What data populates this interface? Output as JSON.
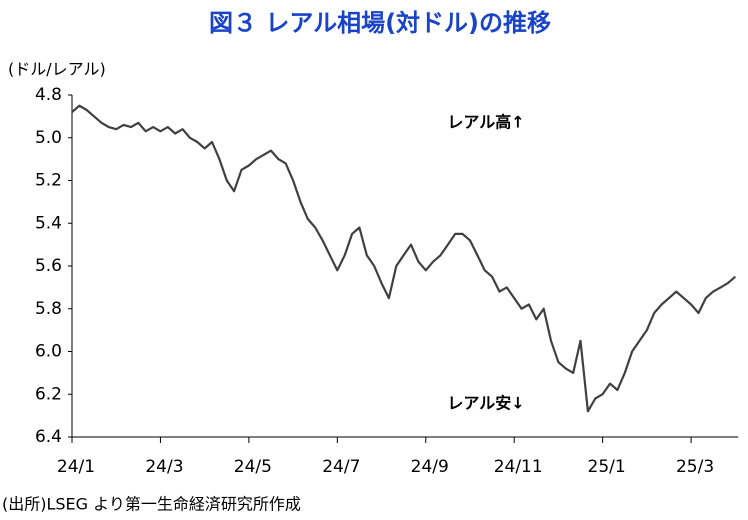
{
  "chart_data": {
    "type": "line",
    "title": "図３ レアル相場(対ドル)の推移",
    "y_label": "(ドル/レアル)",
    "annotations": [
      "レアル高↑",
      "レアル安↓"
    ],
    "source": "(出所)LSEG より第一生命経済研究所作成",
    "ylim": [
      4.8,
      6.4
    ],
    "y_inverted": true,
    "yticks": [
      4.8,
      {
        "value": 5,
        "label": "5.0"
      },
      5.2,
      5.4,
      5.6,
      5.8,
      {
        "value": 6,
        "label": "6.0"
      },
      6.2,
      6.4
    ],
    "categories": [
      "24/1",
      null,
      null,
      null,
      null,
      null,
      null,
      null,
      null,
      null,
      null,
      null,
      "24/3",
      null,
      null,
      null,
      null,
      null,
      null,
      null,
      null,
      null,
      null,
      null,
      "24/5",
      null,
      null,
      null,
      null,
      null,
      null,
      null,
      null,
      null,
      null,
      null,
      "24/7",
      null,
      null,
      null,
      null,
      null,
      null,
      null,
      null,
      null,
      null,
      null,
      "24/9",
      null,
      null,
      null,
      null,
      null,
      null,
      null,
      null,
      null,
      null,
      null,
      "24/11",
      null,
      null,
      null,
      null,
      null,
      null,
      null,
      null,
      null,
      null,
      null,
      "25/1",
      null,
      null,
      null,
      null,
      null,
      null,
      null,
      null,
      null,
      null,
      null,
      "25/3",
      null,
      null,
      null,
      null,
      null,
      null
    ],
    "series": [
      {
        "color": "#404040",
        "values": [
          4.88,
          4.85,
          4.87,
          4.9,
          4.93,
          4.95,
          4.96,
          4.94,
          4.95,
          4.93,
          4.97,
          4.95,
          4.97,
          4.95,
          4.98,
          4.96,
          5.0,
          5.02,
          5.05,
          5.02,
          5.1,
          5.2,
          5.25,
          5.15,
          5.13,
          5.1,
          5.08,
          5.06,
          5.1,
          5.12,
          5.2,
          5.3,
          5.38,
          5.42,
          5.48,
          5.55,
          5.62,
          5.55,
          5.45,
          5.42,
          5.55,
          5.6,
          5.68,
          5.75,
          5.6,
          5.55,
          5.5,
          5.58,
          5.62,
          5.58,
          5.55,
          5.5,
          5.45,
          5.45,
          5.48,
          5.55,
          5.62,
          5.65,
          5.72,
          5.7,
          5.75,
          5.8,
          5.78,
          5.85,
          5.8,
          5.95,
          6.05,
          6.08,
          6.1,
          5.95,
          6.28,
          6.22,
          6.2,
          6.15,
          6.18,
          6.1,
          6.0,
          5.95,
          5.9,
          5.82,
          5.78,
          5.75,
          5.72,
          5.75,
          5.78,
          5.82,
          5.75,
          5.72,
          5.7,
          5.68,
          5.65
        ]
      }
    ]
  }
}
